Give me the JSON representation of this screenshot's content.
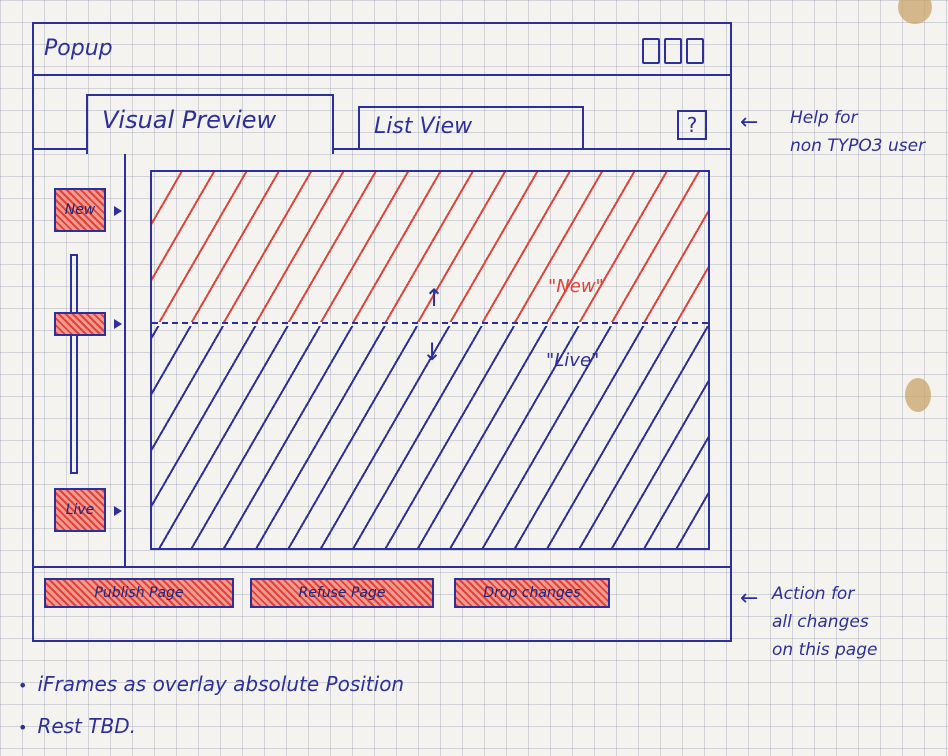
{
  "window": {
    "title": "Popup",
    "controls": [
      "minimize-icon",
      "maximize-icon",
      "close-icon"
    ]
  },
  "tabs": [
    {
      "label": "Visual Preview",
      "active": true
    },
    {
      "label": "List View",
      "active": false
    }
  ],
  "help": {
    "label": "?"
  },
  "sidebar": {
    "new_label": "New",
    "live_label": "Live"
  },
  "preview": {
    "new_label": "\"New\"",
    "live_label": "\"Live\"",
    "arrow_up": "↑",
    "arrow_down": "↓"
  },
  "actions": [
    {
      "label": "Publish Page"
    },
    {
      "label": "Refuse Page"
    },
    {
      "label": "Drop changes"
    }
  ],
  "notes": {
    "help_lines": [
      "Help for",
      "non TYPO3 user"
    ],
    "action_lines": [
      "Action for",
      "all changes",
      "on this page"
    ]
  },
  "bullets": [
    "iFrames as overlay absolute Position",
    "Rest TBD."
  ],
  "colors": {
    "ink": "#2d2f9a",
    "new": "#e0433a"
  }
}
